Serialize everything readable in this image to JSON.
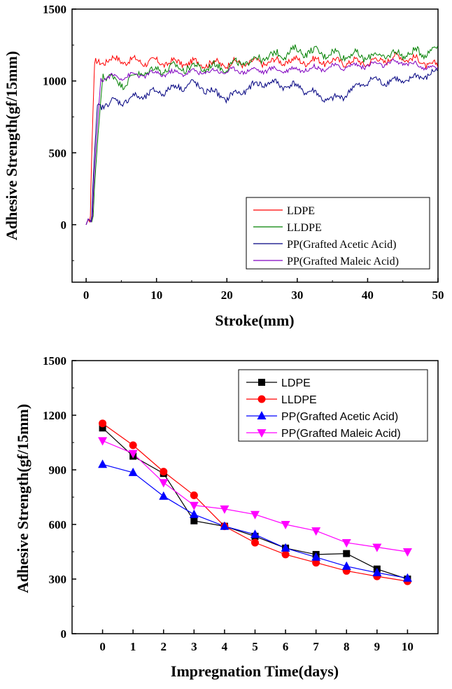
{
  "chart_data": [
    {
      "type": "line",
      "title": "",
      "xlabel": "Stroke(mm)",
      "ylabel": "Adhesive Strength(gf/15mm)",
      "xlim": [
        -2,
        50
      ],
      "ylim": [
        -400,
        1500
      ],
      "xticks": [
        0,
        10,
        20,
        30,
        40,
        50
      ],
      "yticks": [
        0,
        500,
        1000,
        1500
      ],
      "legend_position": "bottom-right",
      "series": [
        {
          "name": "LDPE",
          "color": "#ff0000",
          "rise_start": 0.6,
          "rise_end": 1.2,
          "plateau": [
            [
              1.2,
              1120
            ],
            [
              3,
              1150
            ],
            [
              10,
              1130
            ],
            [
              20,
              1120
            ],
            [
              30,
              1140
            ],
            [
              40,
              1130
            ],
            [
              45,
              1170
            ],
            [
              50,
              1100
            ]
          ],
          "noise": 35
        },
        {
          "name": "LLDPE",
          "color": "#008000",
          "rise_start": 1.0,
          "rise_end": 2.4,
          "plateau": [
            [
              2.4,
              1050
            ],
            [
              5,
              980
            ],
            [
              8,
              1060
            ],
            [
              12,
              1090
            ],
            [
              20,
              1100
            ],
            [
              25,
              1160
            ],
            [
              30,
              1210
            ],
            [
              40,
              1170
            ],
            [
              48,
              1200
            ],
            [
              50,
              1230
            ]
          ],
          "noise": 40
        },
        {
          "name": "PP(Grafted Acetic Acid)",
          "color": "#000080",
          "rise_start": 0.8,
          "rise_end": 1.6,
          "plateau": [
            [
              1.6,
              830
            ],
            [
              5,
              860
            ],
            [
              10,
              920
            ],
            [
              15,
              980
            ],
            [
              20,
              880
            ],
            [
              25,
              990
            ],
            [
              30,
              960
            ],
            [
              35,
              860
            ],
            [
              40,
              1000
            ],
            [
              45,
              1000
            ],
            [
              50,
              1060
            ]
          ],
          "noise": 35
        },
        {
          "name": "PP(Grafted Maleic Acid)",
          "color": "#8000c0",
          "rise_start": 0.9,
          "rise_end": 2.1,
          "plateau": [
            [
              2.1,
              1020
            ],
            [
              10,
              1050
            ],
            [
              20,
              1070
            ],
            [
              30,
              1080
            ],
            [
              40,
              1110
            ],
            [
              45,
              1130
            ],
            [
              50,
              1080
            ]
          ],
          "noise": 25
        }
      ]
    },
    {
      "type": "line",
      "title": "",
      "xlabel": "Impregnation Time(days)",
      "ylabel": "Adhesive Strength(gf/15mm)",
      "xlim": [
        -1,
        11
      ],
      "ylim": [
        0,
        1500
      ],
      "xticks": [
        0,
        1,
        2,
        3,
        4,
        5,
        6,
        7,
        8,
        9,
        10
      ],
      "yticks": [
        0,
        300,
        600,
        900,
        1200,
        1500
      ],
      "legend_position": "top-right",
      "x": [
        0,
        1,
        2,
        3,
        4,
        5,
        6,
        7,
        8,
        9,
        10
      ],
      "series": [
        {
          "name": "LDPE",
          "color": "#000000",
          "marker": "square",
          "values": [
            1130,
            975,
            880,
            620,
            590,
            535,
            470,
            435,
            440,
            355,
            300
          ]
        },
        {
          "name": "LLDPE",
          "color": "#ff0000",
          "marker": "circle",
          "values": [
            1155,
            1035,
            890,
            760,
            590,
            500,
            435,
            390,
            345,
            315,
            288
          ]
        },
        {
          "name": "PP(Grafted Acetic Acid)",
          "color": "#0000ff",
          "marker": "triangle-up",
          "values": [
            930,
            885,
            755,
            655,
            590,
            545,
            470,
            420,
            370,
            335,
            305
          ]
        },
        {
          "name": "PP(Grafted Maleic Acid)",
          "color": "#ff00ff",
          "marker": "triangle-down",
          "values": [
            1060,
            990,
            830,
            705,
            685,
            655,
            600,
            565,
            500,
            475,
            450
          ]
        }
      ]
    }
  ]
}
